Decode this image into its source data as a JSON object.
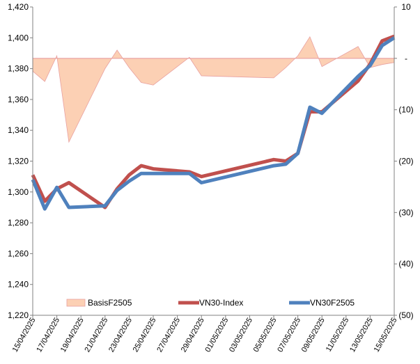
{
  "chart_data": {
    "type": "line",
    "x": [
      "15/04/2025",
      "16/04/2025",
      "17/04/2025",
      "18/04/2025",
      "21/04/2025",
      "22/04/2025",
      "23/04/2025",
      "24/04/2025",
      "25/04/2025",
      "28/04/2025",
      "29/04/2025",
      "05/05/2025",
      "06/05/2025",
      "07/05/2025",
      "08/05/2025",
      "09/05/2025",
      "12/05/2025",
      "13/05/2025",
      "14/05/2025",
      "15/05/2025"
    ],
    "x_tick_labels": [
      "15/04/2025",
      "17/04/2025",
      "19/04/2025",
      "21/04/2025",
      "23/04/2025",
      "25/04/2025",
      "27/04/2025",
      "29/04/2025",
      "01/05/2025",
      "03/05/2025",
      "05/05/2025",
      "07/05/2025",
      "09/05/2025",
      "11/05/2025",
      "13/05/2025",
      "15/05/2025"
    ],
    "x_range": [
      "15/04/2025",
      "15/05/2025"
    ],
    "y_left": {
      "min": 1220,
      "max": 1420,
      "step": 20,
      "tick_labels": [
        "1,220",
        "1,240",
        "1,260",
        "1,280",
        "1,300",
        "1,320",
        "1,340",
        "1,360",
        "1,380",
        "1,400",
        "1,420"
      ]
    },
    "y_right": {
      "min": -50,
      "max": 10,
      "step": 10,
      "tick_labels": [
        "(50)",
        "(40)",
        "(30)",
        "(20)",
        "(10)",
        "-",
        "10"
      ]
    },
    "series": [
      {
        "name": "BasisF2505",
        "type": "area",
        "axis": "right",
        "color": "#fcd0b4",
        "edge_color": "#e8a0a0",
        "values": [
          -2.5,
          -4.5,
          0.5,
          -16.3,
          -2.0,
          1.6,
          -1.8,
          -4.7,
          -5.2,
          0.2,
          -3.4,
          -3.8,
          -1.8,
          0.5,
          4.2,
          -1.6,
          2.3,
          -1.8,
          -1.2,
          -0.8
        ]
      },
      {
        "name": "VN30-Index",
        "type": "line",
        "axis": "left",
        "color": "#c0504d",
        "values": [
          1311,
          1294,
          1302,
          1306,
          1290,
          1302,
          1311,
          1317,
          1315,
          1313,
          1310,
          1321,
          1320,
          1325,
          1352,
          1352,
          1372,
          1383,
          1398,
          1401
        ]
      },
      {
        "name": "VN30F2505",
        "type": "line",
        "axis": "left",
        "color": "#4f81bd",
        "values": [
          1308,
          1289,
          1303,
          1290,
          1291,
          1301,
          1307,
          1312,
          1312,
          1312,
          1306,
          1317,
          1318,
          1325,
          1355,
          1351,
          1375,
          1382,
          1395,
          1400
        ]
      }
    ],
    "legend_placement": "bottom-inside",
    "grid": false
  }
}
